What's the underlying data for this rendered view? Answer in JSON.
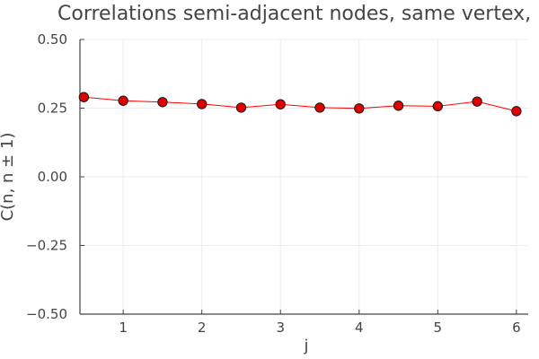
{
  "chart_data": {
    "type": "line",
    "title": "Correlations semi-adjacent nodes, same vertex, EPRL",
    "xlabel": "j",
    "ylabel": "C(n, n ± 1)",
    "xlim": [
      0.45,
      6.15
    ],
    "ylim": [
      -0.5,
      0.5
    ],
    "x_ticks": [
      1,
      2,
      3,
      4,
      5,
      6
    ],
    "x_tick_labels": [
      "1",
      "2",
      "3",
      "4",
      "5",
      "6"
    ],
    "y_ticks": [
      0.5,
      0.25,
      0.0,
      -0.25,
      -0.5
    ],
    "y_tick_labels": [
      "0.50",
      "0.25",
      "0.00",
      "−0.25",
      "−0.50"
    ],
    "grid": true,
    "legend": "none",
    "series": [
      {
        "color": "#ff0000",
        "marker_color": "#e00000",
        "x": [
          0.5,
          1.0,
          1.5,
          2.0,
          2.5,
          3.0,
          3.5,
          4.0,
          4.5,
          5.0,
          5.5,
          6.0
        ],
        "values": [
          0.29,
          0.277,
          0.272,
          0.265,
          0.252,
          0.264,
          0.252,
          0.249,
          0.259,
          0.257,
          0.274,
          0.239
        ]
      }
    ]
  }
}
